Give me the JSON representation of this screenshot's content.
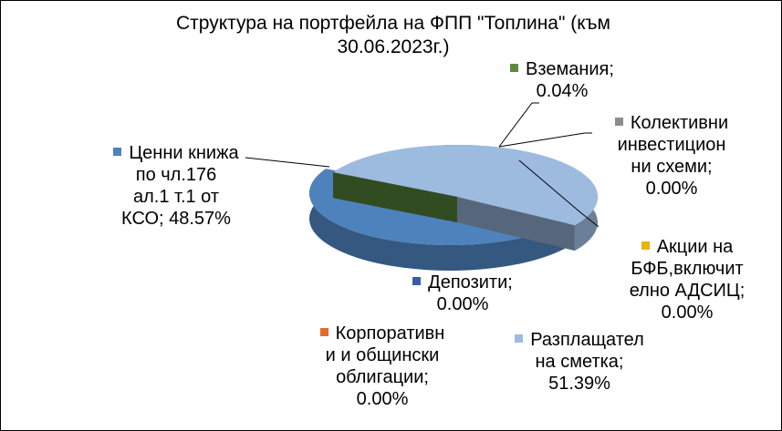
{
  "chart_data": {
    "type": "pie",
    "style": "3d-exploded",
    "title_lines": [
      "Структура  на портфейла на ФПП \"Топлина\" (към",
      "30.06.2023г.)"
    ],
    "slices": [
      {
        "key": "vzemania",
        "lines": [
          "Вземания;",
          "0.04%"
        ],
        "value": 0.04,
        "color": "#5b8a3c"
      },
      {
        "key": "kolektivni",
        "lines": [
          "Колективни",
          "инвестицион",
          "ни схеми;",
          "0.00%"
        ],
        "value": 0.0,
        "color": "#8c8c8c"
      },
      {
        "key": "akcii",
        "lines": [
          "Акции на",
          "БФБ,включит",
          "елно АДСИЦ;",
          "0.00%"
        ],
        "value": 0.0,
        "color": "#e8b40a"
      },
      {
        "key": "razplashtatel",
        "lines": [
          "Разплащател",
          "на сметка;",
          "51.39%"
        ],
        "value": 51.39,
        "color": "#9dbbdf"
      },
      {
        "key": "korporativni",
        "lines": [
          "Корпоративн",
          "и и общински",
          "облигации;",
          "0.00%"
        ],
        "value": 0.0,
        "color": "#e06c2c"
      },
      {
        "key": "depoziti",
        "lines": [
          "Депозити;",
          "0.00%"
        ],
        "value": 0.0,
        "color": "#3a5ca8"
      },
      {
        "key": "cenni",
        "lines": [
          "Ценни книжа",
          "по чл.176",
          "ал.1 т.1 от",
          "КСО; 48.57%"
        ],
        "value": 48.57,
        "color": "#4d82bc"
      }
    ]
  }
}
